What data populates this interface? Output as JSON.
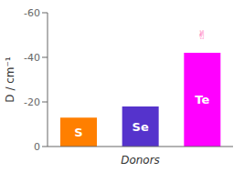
{
  "chart_data": {
    "type": "bar",
    "categories": [
      "S",
      "Se",
      "Te"
    ],
    "values": [
      -13,
      -18,
      -42
    ],
    "colors": [
      "#FF7F00",
      "#5533CC",
      "#FF00FF"
    ],
    "xlabel": "Donors",
    "ylabel": "D / cm⁻¹",
    "ylim": [
      0,
      -60
    ],
    "yticks": [
      0,
      -20,
      -40,
      -60
    ],
    "grid": false,
    "tick_labels": "y",
    "annotations": [
      {
        "text": "✌",
        "x": "Te",
        "y": -46,
        "color": "#FF69B4"
      }
    ]
  }
}
